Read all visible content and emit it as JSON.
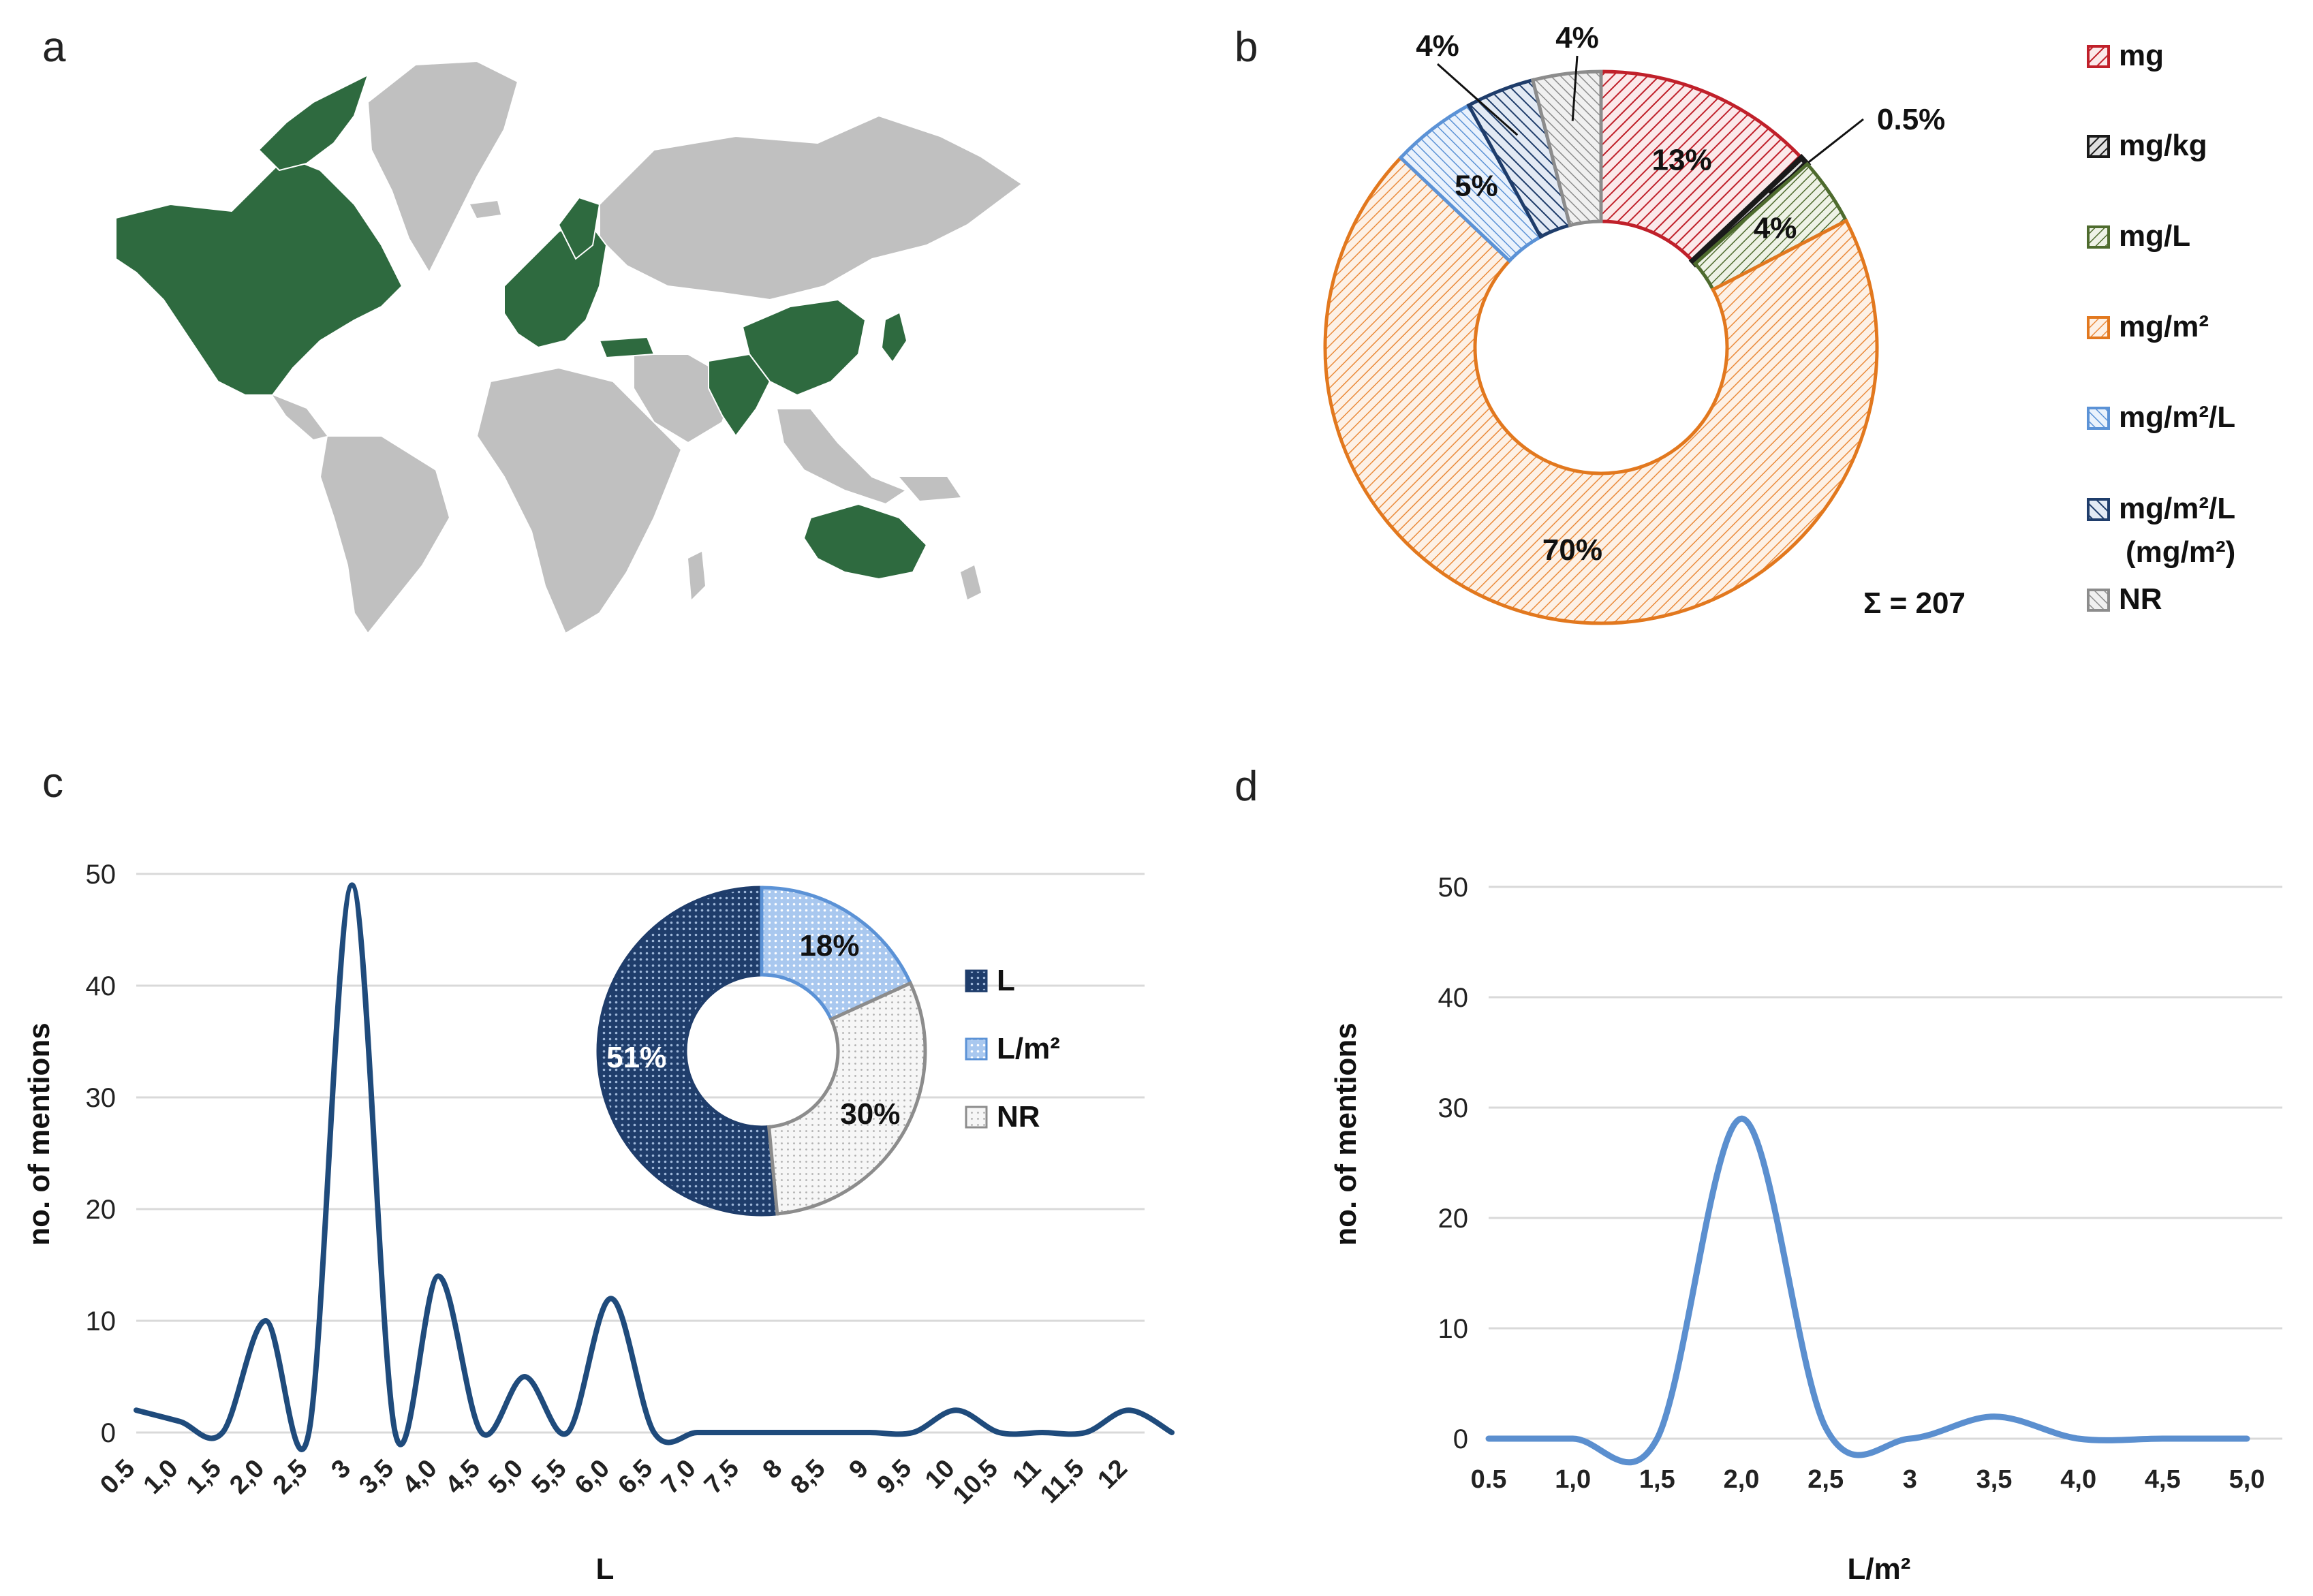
{
  "panel_letters": {
    "a": "a",
    "b": "b",
    "c": "c",
    "d": "d"
  },
  "colors": {
    "map_highlight": "#2e6a3f",
    "map_base": "#c0c0c0",
    "mg": "#c0202a",
    "mg_kg": "#1a1a1a",
    "mg_L": "#4e6b2e",
    "mg_m2": "#e2781e",
    "mg_m2_L": "#5b92d6",
    "mg_m2_L_mg_m2": "#1f3d6b",
    "NR": "#8c8c8c",
    "line_c": "#1f4b7c",
    "line_d": "#5b8fcf",
    "L": "#1f3d6b",
    "L_m2": "#5b92d6",
    "grid": "#d9d9d9"
  },
  "map": {
    "highlighted_regions": [
      "Canada",
      "United States",
      "Mexico",
      "Greenland-adjacent Arctic Canada",
      "Europe",
      "Turkey",
      "India",
      "China",
      "Japan",
      "Korea",
      "Australia"
    ]
  },
  "chart_data": [
    {
      "panel": "b",
      "type": "pie",
      "donut": true,
      "sum_label": "Σ = 207",
      "slices": [
        {
          "label": "mg",
          "value": 13,
          "display": "13%",
          "color": "#c0202a"
        },
        {
          "label": "mg/kg",
          "value": 0.5,
          "display": "0.5%",
          "color": "#1a1a1a"
        },
        {
          "label": "mg/L",
          "value": 4,
          "display": "4%",
          "color": "#4e6b2e"
        },
        {
          "label": "mg/m²",
          "value": 70,
          "display": "70%",
          "color": "#e2781e"
        },
        {
          "label": "mg/m²/L",
          "value": 5,
          "display": "5%",
          "color": "#5b92d6"
        },
        {
          "label": "mg/m²/L (mg/m²)",
          "value": 4,
          "display": "4%",
          "color": "#1f3d6b"
        },
        {
          "label": "NR",
          "value": 4,
          "display": "4%",
          "color": "#8c8c8c"
        }
      ],
      "legend": {
        "position": "right",
        "entries": [
          "mg",
          "mg/kg",
          "mg/L",
          "mg/m²",
          "mg/m²/L",
          "mg/m²/L",
          "(mg/m²)",
          "NR"
        ]
      }
    },
    {
      "panel": "c",
      "type": "line",
      "smooth": true,
      "xlabel": "L",
      "ylabel": "no. of mentions",
      "ylim": [
        0,
        50
      ],
      "yticks": [
        0,
        10,
        20,
        30,
        40,
        50
      ],
      "categories": [
        "0.5",
        "1,0",
        "1,5",
        "2,0",
        "2,5",
        "3",
        "3,5",
        "4,0",
        "4,5",
        "5,0",
        "5,5",
        "6,0",
        "6,5",
        "7,0",
        "7,5",
        "8",
        "8,5",
        "9",
        "9,5",
        "10",
        "10,5",
        "11",
        "11,5",
        "12",
        ""
      ],
      "values": [
        2,
        1,
        0,
        10,
        0,
        49,
        0,
        14,
        0,
        5,
        0,
        12,
        0,
        0,
        0,
        0,
        0,
        0,
        0,
        2,
        0,
        0,
        0,
        2,
        0
      ],
      "color": "#1f4b7c",
      "inset": {
        "type": "pie",
        "donut": true,
        "slices": [
          {
            "label": "L",
            "value": 51,
            "display": "51%",
            "color": "#1f3d6b"
          },
          {
            "label": "L/m²",
            "value": 18,
            "display": "18%",
            "color": "#5b92d6"
          },
          {
            "label": "NR",
            "value": 30,
            "display": "30%",
            "color": "#8c8c8c"
          }
        ]
      }
    },
    {
      "panel": "d",
      "type": "line",
      "smooth": true,
      "xlabel": "L/m²",
      "ylabel": "no. of mentions",
      "ylim": [
        0,
        50
      ],
      "yticks": [
        0,
        10,
        20,
        30,
        40,
        50
      ],
      "categories": [
        "0.5",
        "1,0",
        "1,5",
        "2,0",
        "2,5",
        "3",
        "3,5",
        "4,0",
        "4,5",
        "5,0"
      ],
      "values": [
        0,
        0,
        0,
        29,
        1,
        0,
        2,
        0,
        0,
        0
      ],
      "color": "#5b8fcf"
    }
  ]
}
